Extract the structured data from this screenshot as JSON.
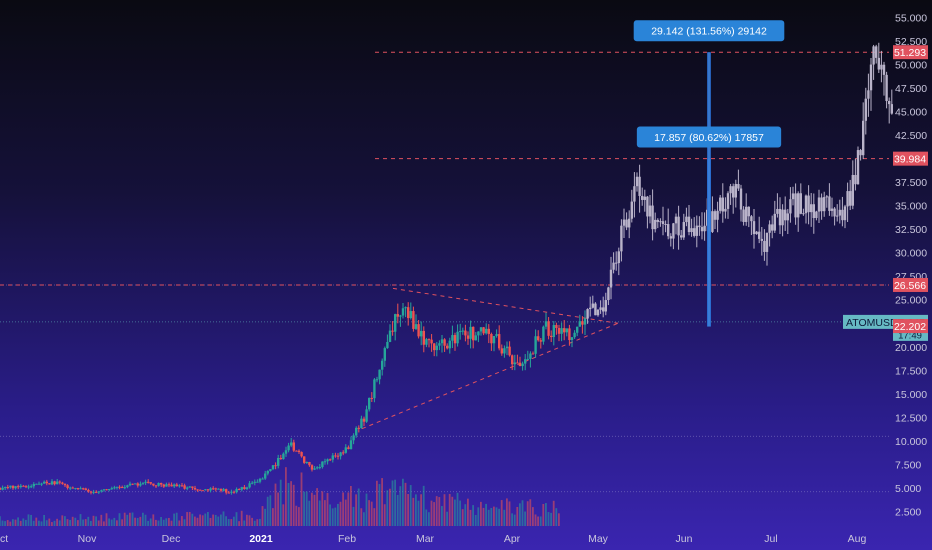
{
  "chart_data": {
    "type": "candlestick",
    "symbol": "ATOMUSDT",
    "timeframe_shown": "daily",
    "x_ticks": [
      "Oct",
      "Nov",
      "Dec",
      "2021",
      "Feb",
      "Mar",
      "Apr",
      "May",
      "Jun",
      "Jul",
      "Aug"
    ],
    "y_ticks": [
      "2.500",
      "5.000",
      "7.500",
      "10.000",
      "12.500",
      "15.000",
      "17.500",
      "20.000",
      "22.500",
      "25.000",
      "27.500",
      "30.000",
      "32.500",
      "35.000",
      "37.500",
      "40.000",
      "42.500",
      "45.000",
      "47.500",
      "50.000",
      "52.500",
      "55.000"
    ],
    "ylim": [
      1.6,
      56.2
    ],
    "price_labels": [
      {
        "text": "51.293",
        "value": 51.293,
        "color": "#e0525f"
      },
      {
        "text": "39.984",
        "value": 39.984,
        "color": "#e0525f"
      },
      {
        "text": "26.566",
        "value": 26.566,
        "color": "#e0525f"
      },
      {
        "text": "ATOMUSDT",
        "value": 22.645,
        "color": "#66b9c4",
        "price": "22.645",
        "sub": "17:49"
      },
      {
        "text": "22.202",
        "value": 22.202,
        "color": "#e0525f"
      }
    ],
    "horizontal_levels": [
      51.293,
      39.984,
      26.566
    ],
    "dotted_levels": [
      26.566,
      22.645,
      10.5,
      4.6
    ],
    "measure_boxes": [
      {
        "label": "29.142 (131.56%) 29142",
        "from": 22.15,
        "to": 51.293
      },
      {
        "label": "17.857 (80.62%) 17857",
        "from": 22.15,
        "to": 40.0
      }
    ],
    "triangle": {
      "apex_value": 22.5,
      "top_start": 26.2,
      "bottom_start": 11.3
    },
    "candles_mode": "synthesized from visible price path",
    "price_path": [
      {
        "d": 0,
        "v": 5.0
      },
      {
        "d": 20,
        "v": 5.6
      },
      {
        "d": 35,
        "v": 4.6
      },
      {
        "d": 55,
        "v": 5.5
      },
      {
        "d": 75,
        "v": 5.0
      },
      {
        "d": 90,
        "v": 4.6
      },
      {
        "d": 100,
        "v": 5.8
      },
      {
        "d": 112,
        "v": 9.5
      },
      {
        "d": 120,
        "v": 7.0
      },
      {
        "d": 133,
        "v": 9.0
      },
      {
        "d": 140,
        "v": 12.5
      },
      {
        "d": 150,
        "v": 21.0
      },
      {
        "d": 155,
        "v": 25.0
      },
      {
        "d": 162,
        "v": 21.0
      },
      {
        "d": 170,
        "v": 20.0
      },
      {
        "d": 180,
        "v": 21.5
      },
      {
        "d": 190,
        "v": 21.0
      },
      {
        "d": 200,
        "v": 17.8
      },
      {
        "d": 210,
        "v": 22.0
      },
      {
        "d": 220,
        "v": 21.5
      },
      {
        "d": 233,
        "v": 25.0
      },
      {
        "d": 240,
        "v": 33.0
      },
      {
        "d": 245,
        "v": 38.0
      },
      {
        "d": 252,
        "v": 33.0
      },
      {
        "d": 262,
        "v": 32.5
      },
      {
        "d": 275,
        "v": 33.5
      },
      {
        "d": 282,
        "v": 37.0
      },
      {
        "d": 292,
        "v": 30.5
      },
      {
        "d": 303,
        "v": 35.0
      },
      {
        "d": 315,
        "v": 35.0
      },
      {
        "d": 325,
        "v": 34.0
      },
      {
        "d": 330,
        "v": 40.0
      },
      {
        "d": 336,
        "v": 50.0
      },
      {
        "d": 340,
        "v": 48.0
      },
      {
        "d": 343,
        "v": 46.0
      }
    ],
    "volume_profile": [
      {
        "d": 0,
        "v": 0.15
      },
      {
        "d": 100,
        "v": 0.2
      },
      {
        "d": 112,
        "v": 0.9
      },
      {
        "d": 120,
        "v": 0.5
      },
      {
        "d": 140,
        "v": 0.55
      },
      {
        "d": 152,
        "v": 0.7
      },
      {
        "d": 170,
        "v": 0.45
      },
      {
        "d": 200,
        "v": 0.35
      },
      {
        "d": 215,
        "v": 0.35
      }
    ],
    "volume_end_day": 215
  }
}
